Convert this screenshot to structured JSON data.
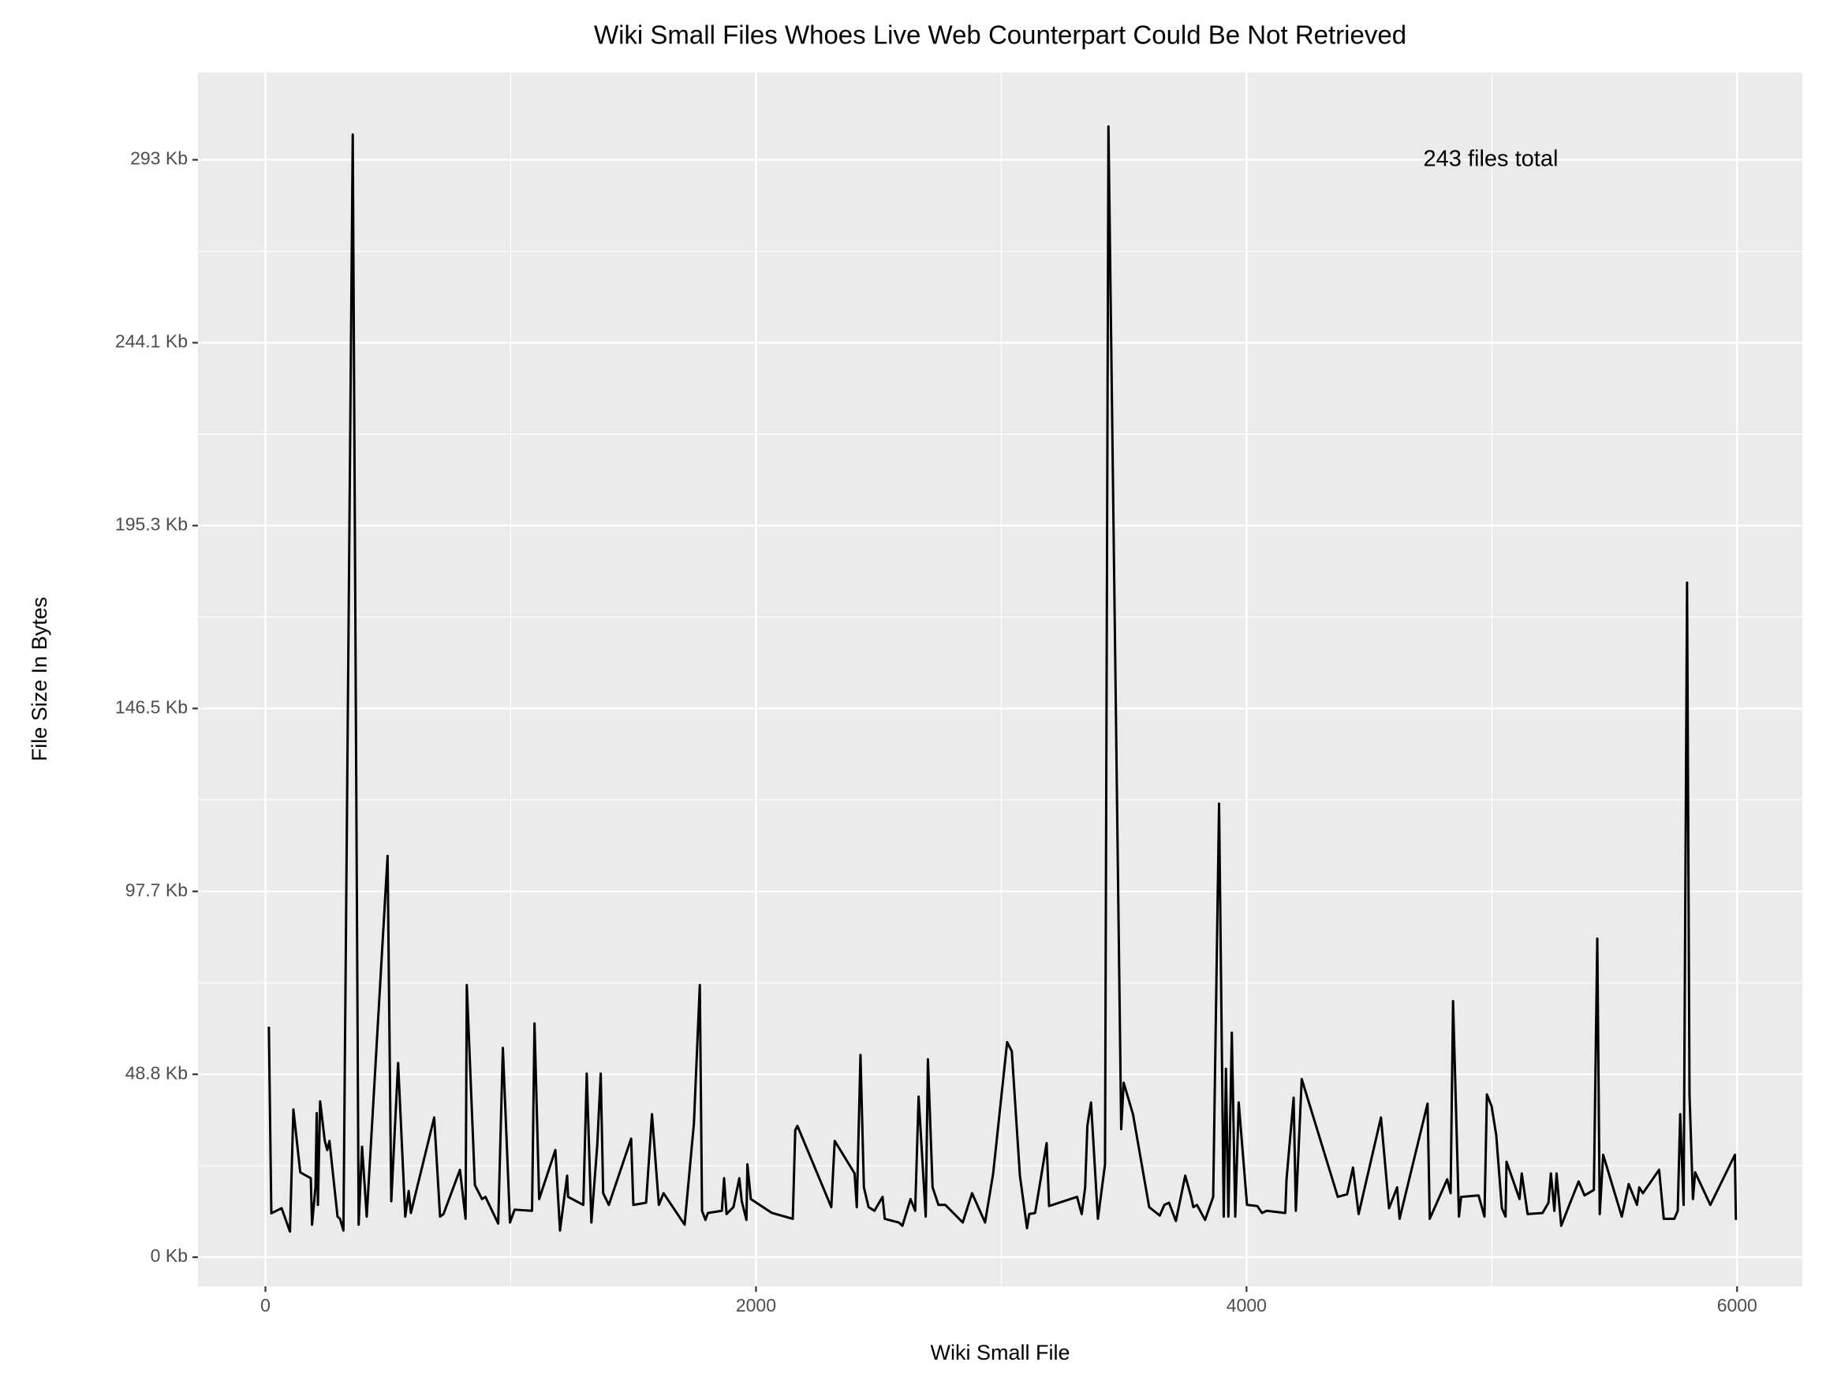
{
  "chart_data": {
    "type": "line",
    "title": "Wiki Small Files Whoes Live Web Counterpart Could Be Not Retrieved",
    "x_label": "Wiki Small File",
    "y_label": "File Size In Bytes",
    "annotation": "243 files total",
    "grid": true,
    "xlim": [
      -275,
      6266
    ],
    "ylim": [
      -7953,
      323850
    ],
    "xticks": [
      0,
      2000,
      4000,
      6000
    ],
    "yticks": [
      {
        "value": 0,
        "label": "0 Kb"
      },
      {
        "value": 50000,
        "label": "48.8 Kb"
      },
      {
        "value": 100000,
        "label": "97.7 Kb"
      },
      {
        "value": 150000,
        "label": "146.5 Kb"
      },
      {
        "value": 200000,
        "label": "195.3 Kb"
      },
      {
        "value": 250000,
        "label": "244.1 Kb"
      },
      {
        "value": 300000,
        "label": "293 Kb"
      }
    ],
    "color": "#000000",
    "x": [
      14,
      24,
      66,
      100,
      114,
      142,
      185,
      190,
      204,
      209,
      214,
      223,
      242,
      252,
      261,
      294,
      304,
      318,
      356,
      380,
      394,
      413,
      498,
      513,
      541,
      570,
      584,
      593,
      688,
      712,
      726,
      793,
      816,
      821,
      854,
      883,
      897,
      949,
      968,
      997,
      1016,
      1087,
      1097,
      1116,
      1182,
      1201,
      1230,
      1234,
      1296,
      1310,
      1329,
      1353,
      1367,
      1377,
      1400,
      1491,
      1500,
      1552,
      1576,
      1604,
      1623,
      1709,
      1747,
      1771,
      1780,
      1794,
      1804,
      1861,
      1870,
      1880,
      1908,
      1932,
      1942,
      1961,
      1965,
      1979,
      2065,
      2150,
      2160,
      2169,
      2307,
      2321,
      2402,
      2411,
      2426,
      2440,
      2459,
      2483,
      2516,
      2525,
      2582,
      2597,
      2630,
      2649,
      2663,
      2692,
      2701,
      2720,
      2744,
      2772,
      2843,
      2881,
      2934,
      2967,
      3024,
      3043,
      3076,
      3105,
      3114,
      3138,
      3185,
      3195,
      3309,
      3328,
      3342,
      3351,
      3366,
      3394,
      3423,
      3437,
      3489,
      3499,
      3537,
      3603,
      3646,
      3665,
      3684,
      3712,
      3750,
      3774,
      3783,
      3798,
      3831,
      3864,
      3888,
      3907,
      3916,
      3926,
      3940,
      3954,
      3968,
      4002,
      4044,
      4063,
      4082,
      4158,
      4163,
      4192,
      4201,
      4225,
      4372,
      4410,
      4434,
      4457,
      4548,
      4581,
      4614,
      4624,
      4738,
      4747,
      4818,
      4832,
      4842,
      4866,
      4875,
      4946,
      4970,
      4980,
      4999,
      5018,
      5041,
      5056,
      5060,
      5113,
      5122,
      5146,
      5207,
      5231,
      5241,
      5255,
      5264,
      5283,
      5316,
      5354,
      5378,
      5416,
      5430,
      5440,
      5454,
      5530,
      5558,
      5592,
      5601,
      5616,
      5682,
      5701,
      5744,
      5758,
      5768,
      5782,
      5796,
      5806,
      5820,
      5829,
      5891,
      5991,
      5995
    ],
    "values": [
      63000,
      12000,
      13400,
      7000,
      40400,
      23200,
      21600,
      8900,
      19100,
      39400,
      14300,
      42600,
      31800,
      29300,
      31800,
      11100,
      10500,
      7300,
      306900,
      8900,
      30200,
      11100,
      109700,
      15300,
      53100,
      11100,
      18100,
      12100,
      38200,
      11100,
      11800,
      23900,
      10500,
      74400,
      19700,
      15900,
      16500,
      9200,
      57200,
      9500,
      13000,
      12700,
      63900,
      15900,
      29300,
      7300,
      22300,
      16500,
      14300,
      50200,
      9500,
      30800,
      50200,
      17500,
      14300,
      32400,
      14300,
      14900,
      39100,
      14300,
      17500,
      8900,
      36600,
      74400,
      12700,
      10200,
      12100,
      12700,
      21600,
      11800,
      13700,
      21600,
      15300,
      10200,
      25400,
      15900,
      12100,
      10500,
      34700,
      35900,
      13700,
      31800,
      22900,
      13700,
      55300,
      19100,
      13700,
      12700,
      16500,
      10500,
      9500,
      8600,
      15900,
      12700,
      43900,
      11100,
      54100,
      19100,
      14300,
      14300,
      9500,
      17500,
      9500,
      22900,
      58800,
      56300,
      22300,
      7950,
      11800,
      12100,
      31200,
      14000,
      16500,
      11800,
      19100,
      35900,
      42300,
      10500,
      25400,
      309100,
      35000,
      47700,
      39100,
      13700,
      11400,
      14300,
      14900,
      9900,
      22300,
      16500,
      13700,
      14300,
      10200,
      16500,
      124000,
      11100,
      51500,
      11100,
      61400,
      11100,
      42300,
      14300,
      14000,
      12100,
      12700,
      12100,
      21300,
      43600,
      12700,
      48700,
      16500,
      17200,
      24500,
      11800,
      38200,
      13400,
      19100,
      10500,
      42000,
      10500,
      21300,
      17500,
      70000,
      11100,
      16500,
      16900,
      11100,
      44500,
      41300,
      33400,
      13400,
      11100,
      26100,
      15900,
      22900,
      11800,
      12100,
      14900,
      22900,
      12700,
      22900,
      8600,
      14300,
      20700,
      16900,
      18400,
      87100,
      11800,
      28000,
      11100,
      20000,
      14300,
      19100,
      17500,
      23900,
      10500,
      10500,
      12700,
      39100,
      14300,
      184400,
      44500,
      15900,
      23200,
      14300,
      28000,
      10200
    ]
  }
}
